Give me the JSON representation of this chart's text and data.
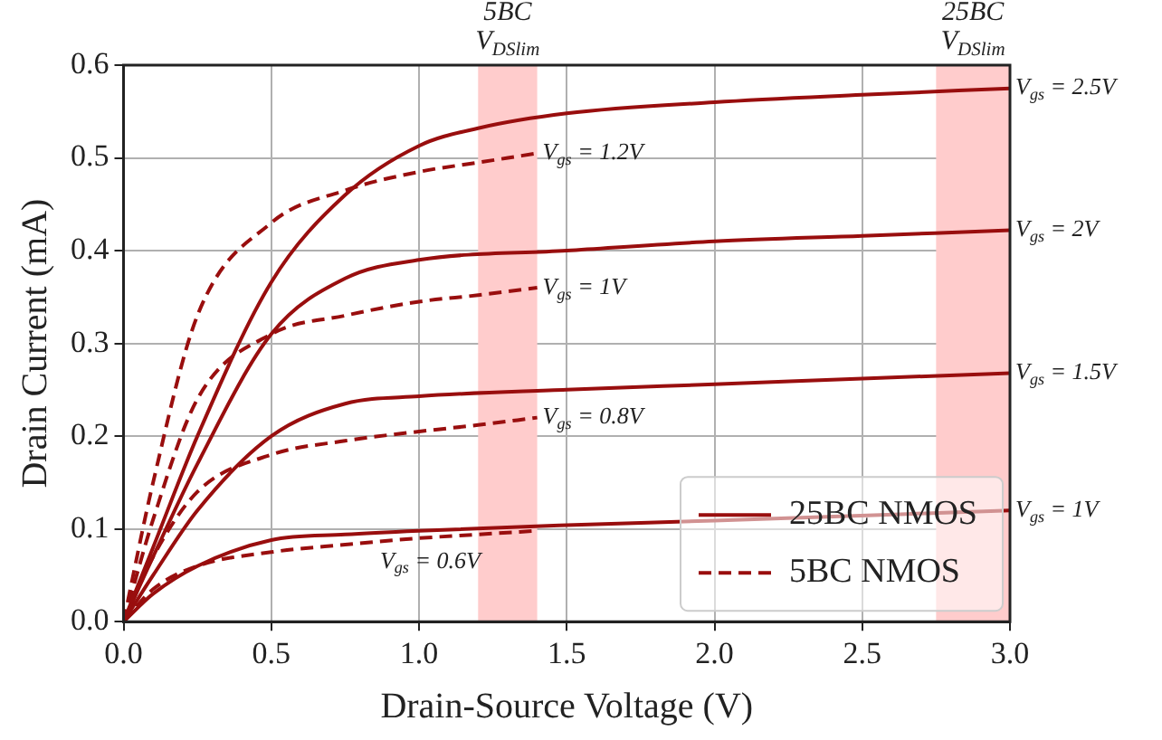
{
  "chart_data": {
    "type": "line",
    "xlabel": "Drain-Source Voltage (V)",
    "ylabel": "Drain Current (mA)",
    "xlim": [
      0,
      3
    ],
    "ylim": [
      0,
      0.6
    ],
    "xticks": [
      {
        "value": 0,
        "label": "0.0"
      },
      0.5,
      {
        "value": 1,
        "label": "1.0"
      },
      1.5,
      {
        "value": 2,
        "label": "2.0"
      },
      2.5,
      {
        "value": 3,
        "label": "3.0"
      }
    ],
    "yticks": [
      {
        "value": 0,
        "label": "0.0"
      },
      0.1,
      0.2,
      0.3,
      0.4,
      0.5,
      0.6
    ],
    "grid": true,
    "legend": "bottom right",
    "marker": "none",
    "series": [
      {
        "name": "25BC NMOS",
        "color": "#990e0e",
        "line_style": "solid",
        "x": [
          0,
          0.1,
          0.25,
          0.5,
          0.75,
          1,
          1.2,
          1.5,
          2,
          2.5,
          3
        ],
        "values": [
          0,
          0.08,
          0.2,
          0.366,
          0.46,
          0.513,
          0.532,
          0.548,
          0.56,
          0.568,
          0.575
        ]
      },
      {
        "color": "#990e0e",
        "line_style": "solid",
        "x": [
          0,
          0.1,
          0.25,
          0.5,
          0.75,
          1,
          1.5,
          2,
          2.5,
          3
        ],
        "values": [
          0,
          0.07,
          0.17,
          0.31,
          0.37,
          0.39,
          0.4,
          0.41,
          0.416,
          0.422
        ]
      },
      {
        "color": "#990e0e",
        "line_style": "solid",
        "x": [
          0,
          0.1,
          0.25,
          0.5,
          0.75,
          1,
          1.5,
          2,
          2.5,
          3
        ],
        "values": [
          0,
          0.05,
          0.12,
          0.2,
          0.235,
          0.243,
          0.25,
          0.256,
          0.262,
          0.268
        ]
      },
      {
        "color": "#990e0e",
        "line_style": "solid",
        "x": [
          0,
          0.1,
          0.25,
          0.5,
          0.75,
          1,
          1.5,
          2,
          2.5,
          3
        ],
        "values": [
          0,
          0.03,
          0.06,
          0.088,
          0.094,
          0.098,
          0.104,
          0.109,
          null,
          0.12
        ]
      },
      {
        "name": "5BC NMOS",
        "color": "#990e0e",
        "line_style": "dashed",
        "x": [
          0,
          0.1,
          0.25,
          0.5,
          0.75,
          1,
          1.2,
          1.4
        ],
        "values": [
          0,
          0.15,
          0.33,
          0.43,
          0.465,
          0.485,
          0.495,
          0.505
        ]
      },
      {
        "color": "#990e0e",
        "line_style": "dashed",
        "x": [
          0,
          0.1,
          0.25,
          0.5,
          0.75,
          1,
          1.2,
          1.4
        ],
        "values": [
          0,
          0.11,
          0.24,
          0.31,
          0.33,
          0.345,
          0.352,
          0.36
        ]
      },
      {
        "color": "#990e0e",
        "line_style": "dashed",
        "x": [
          0,
          0.1,
          0.25,
          0.5,
          0.75,
          1,
          1.2,
          1.4
        ],
        "values": [
          0,
          0.07,
          0.14,
          0.18,
          0.195,
          0.205,
          0.212,
          0.22
        ]
      },
      {
        "color": "#990e0e",
        "line_style": "dashed",
        "x": [
          0,
          0.1,
          0.25,
          0.5,
          0.75,
          1,
          1.2,
          1.4
        ],
        "values": [
          0,
          0.035,
          0.06,
          0.075,
          0.083,
          0.09,
          0.094,
          0.098
        ]
      }
    ],
    "bands": [
      {
        "axis": "x",
        "from": 1.2,
        "to": 1.4,
        "label": "5BC\nV$_{DSlim}$",
        "color": "#ffcccc"
      },
      {
        "axis": "x",
        "from": 2.75,
        "to": 3,
        "label": "25BC\nV$_{DSlim}$",
        "color": "#ffcccc"
      }
    ],
    "annotations": [
      "V$_{gs}$ = 2.5V",
      "V$_{gs}$ = 2V",
      "V$_{gs}$ = 1.5V",
      "V$_{gs}$ = 1V",
      "V$_{gs}$ = 1.2V",
      "V$_{gs}$ = 1V",
      "V$_{gs}$ = 0.8V",
      "V$_{gs}$ = 0.6V"
    ]
  }
}
